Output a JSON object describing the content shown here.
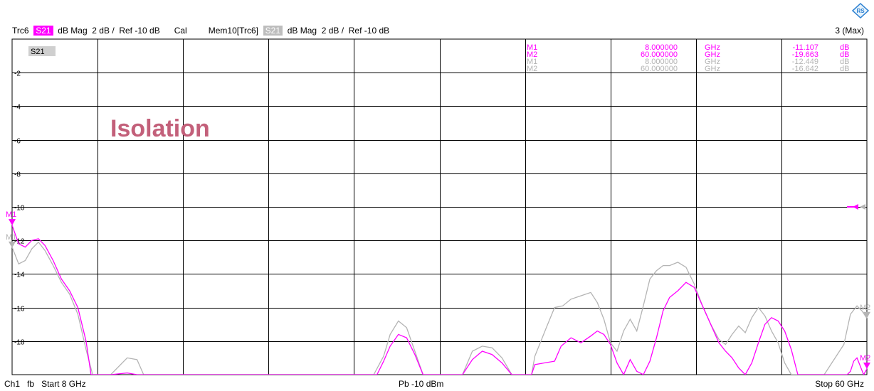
{
  "header": {
    "trace_label": "Trc6",
    "trace_param": "S21",
    "trace_format": "dB Mag",
    "trace_scale": "2 dB /",
    "trace_ref": "Ref -10 dB",
    "cal": "Cal",
    "mem_label": "Mem10[Trc6]",
    "mem_param": "S21",
    "mem_format": "dB Mag",
    "mem_scale": "2 dB /",
    "mem_ref": "Ref -10 dB",
    "max_info": "3 (Max)"
  },
  "footer": {
    "channel": "Ch1",
    "mode": "fb",
    "start": "Start 8 GHz",
    "power": "Pb  -10 dBm",
    "stop": "Stop 60 GHz"
  },
  "colors": {
    "trace": "#ff00ff",
    "memory": "#b4b4b4",
    "grid": "#000000",
    "annotation": "#c3607a"
  },
  "chart_data": {
    "type": "line",
    "title": "Isolation",
    "param_label": "S21",
    "xlabel": "",
    "ylabel": "",
    "xlim": [
      8,
      60
    ],
    "ylim": [
      -20,
      0
    ],
    "y_ticks": [
      -2,
      -4,
      -6,
      -8,
      -10,
      -12,
      -14,
      -16,
      -18
    ],
    "grid": true,
    "series": [
      {
        "name": "Trc6",
        "color": "#ff00ff",
        "x": [
          8.0,
          8.4,
          8.8,
          9.2,
          9.6,
          10.0,
          10.5,
          11.0,
          11.5,
          12.0,
          12.5,
          12.8,
          14.0,
          15.0,
          15.6,
          16.0,
          16.5,
          17.0,
          30.2,
          30.6,
          31.0,
          31.5,
          32.0,
          32.5,
          33.0,
          33.4,
          35.4,
          36.0,
          36.6,
          37.2,
          37.8,
          38.4,
          39.0,
          39.6,
          39.8,
          41.0,
          41.4,
          42.0,
          42.6,
          43.2,
          43.6,
          44.0,
          44.4,
          44.8,
          45.2,
          45.6,
          46.0,
          46.4,
          46.8,
          47.2,
          47.6,
          48.0,
          48.5,
          49.0,
          49.5,
          50.0,
          50.5,
          51.0,
          51.4,
          51.8,
          52.2,
          52.6,
          53.0,
          53.4,
          53.8,
          54.2,
          54.6,
          55.0,
          55.4,
          55.8,
          56.2,
          56.6,
          57.0,
          57.3,
          58.8,
          59.0,
          59.2,
          59.4,
          59.6,
          59.8,
          60.0
        ],
        "values": [
          -11.1,
          -12.2,
          -12.4,
          -12.0,
          -11.9,
          -12.3,
          -13.2,
          -14.3,
          -15.0,
          -16.0,
          -18.0,
          -20.0,
          -20.0,
          -19.9,
          -20.0,
          -20.0,
          -20.0,
          -20.0,
          -20.0,
          -19.2,
          -18.3,
          -17.6,
          -17.8,
          -18.8,
          -20.0,
          -20.0,
          -20.0,
          -19.1,
          -18.6,
          -18.8,
          -19.3,
          -20.0,
          -20.0,
          -20.0,
          -19.4,
          -19.2,
          -18.3,
          -17.8,
          -18.1,
          -17.7,
          -17.4,
          -17.6,
          -18.2,
          -19.3,
          -20.0,
          -19.1,
          -19.8,
          -20.0,
          -19.2,
          -17.8,
          -16.2,
          -15.4,
          -15.0,
          -14.5,
          -14.8,
          -15.9,
          -17.0,
          -18.1,
          -18.6,
          -19.0,
          -19.6,
          -20.0,
          -19.3,
          -18.1,
          -17.0,
          -16.6,
          -16.8,
          -17.4,
          -18.5,
          -20.0,
          -20.0,
          -20.0,
          -20.0,
          -20.0,
          -20.0,
          -19.8,
          -19.2,
          -19.0,
          -19.5,
          -20.0,
          -19.66
        ]
      },
      {
        "name": "Mem10[Trc6]",
        "color": "#b4b4b4",
        "x": [
          8.0,
          8.4,
          8.8,
          9.2,
          9.6,
          10.0,
          10.5,
          11.0,
          11.5,
          12.0,
          12.5,
          12.9,
          14.0,
          15.0,
          15.6,
          16.0,
          16.5,
          17.0,
          30.0,
          30.6,
          31.0,
          31.5,
          32.0,
          32.5,
          33.0,
          33.4,
          35.4,
          36.0,
          36.6,
          37.2,
          37.8,
          38.4,
          39.0,
          39.6,
          39.8,
          40.5,
          41.0,
          41.5,
          42.0,
          42.6,
          43.2,
          43.6,
          44.0,
          44.4,
          44.8,
          45.2,
          45.6,
          46.0,
          46.4,
          46.8,
          47.2,
          47.6,
          48.0,
          48.5,
          49.0,
          49.5,
          50.0,
          50.5,
          51.0,
          51.4,
          51.8,
          52.2,
          52.6,
          53.0,
          53.4,
          53.8,
          54.2,
          54.6,
          55.0,
          55.4,
          55.8,
          56.2,
          56.6,
          57.0,
          57.4,
          58.6,
          59.0,
          59.4,
          59.7,
          60.0
        ],
        "values": [
          -12.4,
          -13.4,
          -13.2,
          -12.5,
          -12.1,
          -12.6,
          -13.5,
          -14.5,
          -15.2,
          -16.4,
          -18.5,
          -20.0,
          -20.0,
          -19.0,
          -19.1,
          -20.0,
          -20.0,
          -20.0,
          -20.0,
          -18.9,
          -17.6,
          -16.8,
          -17.2,
          -18.6,
          -20.0,
          -20.0,
          -20.0,
          -18.6,
          -18.3,
          -18.4,
          -19.0,
          -20.0,
          -20.0,
          -20.0,
          -18.9,
          -17.2,
          -16.0,
          -15.9,
          -15.5,
          -15.3,
          -15.1,
          -15.7,
          -16.7,
          -18.1,
          -18.6,
          -17.4,
          -16.7,
          -17.4,
          -15.9,
          -14.3,
          -13.8,
          -13.5,
          -13.5,
          -13.3,
          -13.6,
          -14.6,
          -15.9,
          -17.0,
          -17.9,
          -18.2,
          -17.6,
          -17.1,
          -17.5,
          -16.6,
          -16.0,
          -16.5,
          -17.4,
          -18.1,
          -19.3,
          -20.0,
          -20.0,
          -20.0,
          -20.0,
          -20.0,
          -20.0,
          -18.2,
          -16.4,
          -15.9,
          -16.2,
          -16.64
        ]
      }
    ],
    "markers": [
      {
        "name": "M1",
        "x_ghz": "8.000000",
        "unit_x": "GHz",
        "value": "-11.107",
        "unit": "dB",
        "trace": 0
      },
      {
        "name": "M2",
        "x_ghz": "60.000000",
        "unit_x": "GHz",
        "value": "-19.663",
        "unit": "dB",
        "trace": 0
      },
      {
        "name": "M1",
        "x_ghz": "8.000000",
        "unit_x": "GHz",
        "value": "-12.449",
        "unit": "dB",
        "trace": 1
      },
      {
        "name": "M2",
        "x_ghz": "60.000000",
        "unit_x": "GHz",
        "value": "-16.642",
        "unit": "dB",
        "trace": 1
      }
    ],
    "marker_table_prefix": "•"
  }
}
